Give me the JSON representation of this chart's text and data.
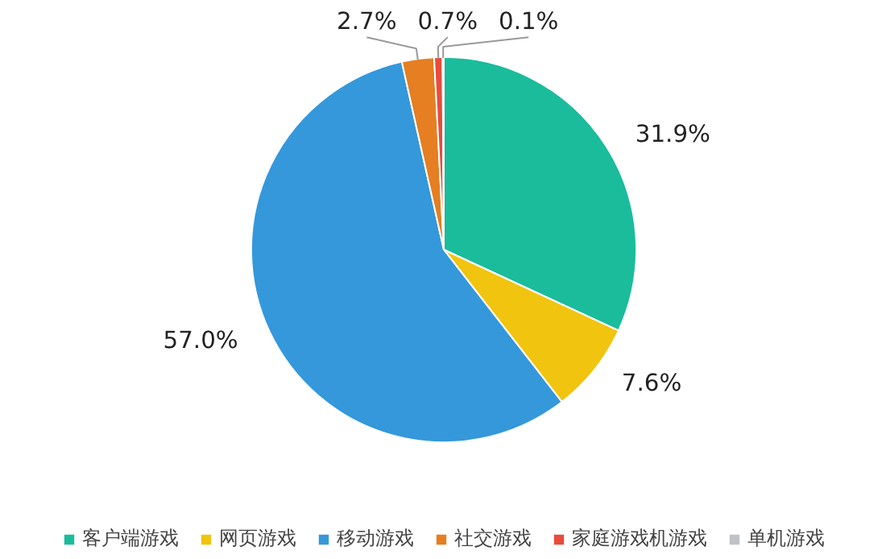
{
  "chart_data": {
    "type": "pie",
    "categories": [
      "客户端游戏",
      "网页游戏",
      "移动游戏",
      "社交游戏",
      "家庭游戏机游戏",
      "单机游戏"
    ],
    "values": [
      31.9,
      7.6,
      57.0,
      2.7,
      0.7,
      0.1
    ],
    "colors": [
      "#1abc9c",
      "#f1c40f",
      "#3498db",
      "#e67e22",
      "#e74c3c",
      "#bdc3c7"
    ],
    "value_labels": [
      "31.9%",
      "7.6%",
      "57.0%",
      "2.7%",
      "0.7%",
      "0.1%"
    ],
    "legend": "bottom"
  }
}
